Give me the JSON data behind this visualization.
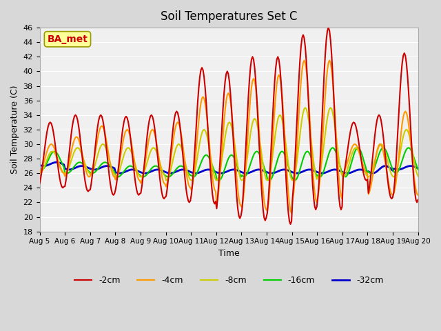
{
  "title": "Soil Temperatures Set C",
  "xlabel": "Time",
  "ylabel": "Soil Temperature (C)",
  "ylim": [
    18,
    46
  ],
  "yticks": [
    18,
    20,
    22,
    24,
    26,
    28,
    30,
    32,
    34,
    36,
    38,
    40,
    42,
    44,
    46
  ],
  "xtick_labels": [
    "Aug 5",
    "Aug 6",
    "Aug 7",
    "Aug 8",
    "Aug 9",
    "Aug 10",
    "Aug 11",
    "Aug 12",
    "Aug 13",
    "Aug 14",
    "Aug 15",
    "Aug 16",
    "Aug 17",
    "Aug 18",
    "Aug 19",
    "Aug 20"
  ],
  "legend_labels": [
    "-2cm",
    "-4cm",
    "-8cm",
    "-16cm",
    "-32cm"
  ],
  "line_colors": [
    "#cc0000",
    "#ff9900",
    "#cccc00",
    "#00cc00",
    "#0000cc"
  ],
  "line_widths": [
    1.5,
    1.5,
    1.5,
    1.5,
    2.0
  ],
  "annotation_text": "BA_met",
  "annotation_color": "#cc0000",
  "annotation_bg": "#ffff99",
  "fig_bg_color": "#d8d8d8",
  "plot_bg": "#f0f0f0",
  "n_points_per_day": 24,
  "n_days": 15,
  "depth_2cm": {
    "min_temps": [
      24.0,
      23.5,
      23.0,
      23.0,
      22.5,
      22.0,
      21.8,
      19.8,
      19.5,
      19.0,
      21.0,
      21.0,
      25.0,
      22.5,
      22.0
    ],
    "max_temps": [
      33.0,
      34.0,
      34.0,
      33.8,
      34.0,
      34.5,
      40.5,
      40.0,
      42.0,
      42.0,
      45.0,
      46.0,
      33.0,
      34.0,
      42.5
    ],
    "peak_hour": 14,
    "trough_hour": 4
  },
  "depth_4cm": {
    "min_temps": [
      26.0,
      25.5,
      25.5,
      25.0,
      24.5,
      24.0,
      23.5,
      21.5,
      21.0,
      20.5,
      22.0,
      22.5,
      26.0,
      23.0,
      23.0
    ],
    "max_temps": [
      30.0,
      31.0,
      32.5,
      32.0,
      32.0,
      33.0,
      36.5,
      37.0,
      39.0,
      39.5,
      41.5,
      41.5,
      30.0,
      30.0,
      34.5
    ],
    "peak_hour": 15,
    "trough_hour": 5
  },
  "depth_8cm": {
    "min_temps": [
      26.0,
      26.0,
      25.8,
      25.5,
      25.5,
      25.0,
      25.0,
      25.0,
      25.0,
      25.0,
      25.0,
      25.5,
      25.5,
      25.5,
      25.5
    ],
    "max_temps": [
      29.0,
      29.5,
      30.0,
      29.5,
      29.5,
      30.0,
      32.0,
      33.0,
      33.5,
      34.0,
      35.0,
      35.0,
      29.5,
      30.0,
      32.0
    ],
    "peak_hour": 16,
    "trough_hour": 6
  },
  "depth_16cm": {
    "min_temps": [
      26.5,
      26.0,
      26.0,
      25.5,
      25.5,
      25.5,
      25.5,
      25.0,
      25.5,
      25.0,
      25.0,
      25.5,
      25.5,
      26.0,
      26.0
    ],
    "max_temps": [
      29.0,
      27.5,
      27.5,
      27.0,
      27.0,
      27.0,
      28.5,
      28.5,
      29.0,
      29.0,
      29.0,
      29.5,
      29.5,
      29.5,
      29.5
    ],
    "peak_hour": 17,
    "trough_hour": 8
  },
  "depth_32cm": {
    "min_temps": [
      27.0,
      26.5,
      26.5,
      26.0,
      26.0,
      26.0,
      26.0,
      26.0,
      26.0,
      26.0,
      26.0,
      26.0,
      26.0,
      26.0,
      26.5
    ],
    "max_temps": [
      27.5,
      27.0,
      27.0,
      26.5,
      26.5,
      26.5,
      26.5,
      26.5,
      26.5,
      26.5,
      26.5,
      26.5,
      26.5,
      27.0,
      27.0
    ],
    "peak_hour": 18,
    "trough_hour": 10
  }
}
